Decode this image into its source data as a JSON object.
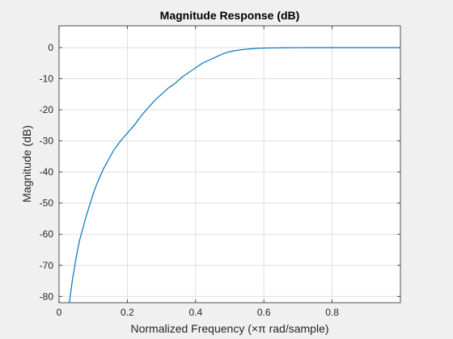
{
  "chart_data": {
    "type": "line",
    "title": "Magnitude Response (dB)",
    "xlabel": "Normalized Frequency (×π rad/sample)",
    "ylabel": "Magnitude (dB)",
    "xlim": [
      0,
      1
    ],
    "ylim": [
      -82,
      7
    ],
    "xticks": [
      0,
      0.2,
      0.4,
      0.6,
      0.8
    ],
    "xtick_labels": [
      "0",
      "0.2",
      "0.4",
      "0.6",
      "0.8"
    ],
    "yticks": [
      0,
      -10,
      -20,
      -30,
      -40,
      -50,
      -60,
      -70,
      -80
    ],
    "ytick_labels": [
      "0",
      "-10",
      "-20",
      "-30",
      "-40",
      "-50",
      "-60",
      "-70",
      "-80"
    ],
    "grid": true,
    "series": [
      {
        "color": "#0072bd",
        "x": [
          0.03,
          0.035,
          0.04,
          0.045,
          0.05,
          0.06,
          0.07,
          0.08,
          0.09,
          0.1,
          0.11,
          0.12,
          0.13,
          0.14,
          0.15,
          0.16,
          0.18,
          0.2,
          0.22,
          0.24,
          0.26,
          0.28,
          0.3,
          0.32,
          0.34,
          0.36,
          0.38,
          0.4,
          0.42,
          0.44,
          0.46,
          0.48,
          0.5,
          0.52,
          0.54,
          0.56,
          0.58,
          0.6,
          0.63,
          0.66,
          0.7,
          0.75,
          0.8,
          0.85,
          0.9,
          0.95,
          0.998
        ],
        "y": [
          -82,
          -78,
          -74,
          -71,
          -67.5,
          -62,
          -58,
          -54,
          -50.5,
          -47,
          -44,
          -41.5,
          -39,
          -37,
          -35,
          -33,
          -30,
          -27.5,
          -25,
          -22,
          -19.5,
          -17,
          -15,
          -13,
          -11.5,
          -9.5,
          -8,
          -6.5,
          -5,
          -4,
          -3,
          -2,
          -1.3,
          -0.9,
          -0.6,
          -0.4,
          -0.25,
          -0.15,
          -0.08,
          -0.04,
          -0.02,
          -0.01,
          0,
          0,
          0,
          0,
          0
        ]
      }
    ]
  }
}
